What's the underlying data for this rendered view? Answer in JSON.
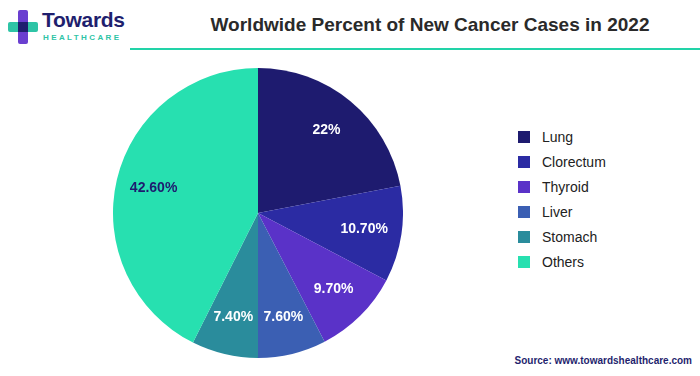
{
  "header": {
    "name": "Towards",
    "tagline": "HEALTHCARE"
  },
  "chart_data": {
    "type": "pie",
    "title": "Worldwide Percent of New Cancer Cases in 2022",
    "categories": [
      "Lung",
      "Clorectum",
      "Thyroid",
      "Liver",
      "Stomach",
      "Others"
    ],
    "values": [
      22,
      10.7,
      9.7,
      7.6,
      7.4,
      42.6
    ],
    "value_labels": [
      "22%",
      "10.70%",
      "9.70%",
      "7.60%",
      "7.40%",
      "42.60%"
    ],
    "colors": [
      "#1e1b6f",
      "#2b2ba3",
      "#5a32c8",
      "#3b5fb3",
      "#2a8c9c",
      "#27e0b0"
    ],
    "data_labels": true,
    "legend": "right",
    "annotations": [
      "Source: www.towardshealthcare.com"
    ]
  }
}
